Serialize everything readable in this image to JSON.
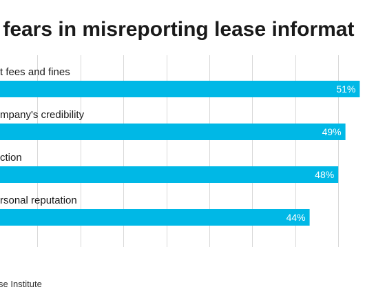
{
  "chart_data": {
    "type": "bar",
    "orientation": "horizontal",
    "title": "t fears in misreporting lease informat",
    "categories": [
      "t fees and fines",
      "mpany's credibility",
      "ction",
      "rsonal reputation"
    ],
    "values": [
      51,
      49,
      48,
      44
    ],
    "value_labels": [
      "51%",
      "49%",
      "48%",
      "44%"
    ],
    "unit": "%",
    "bar_color": "#00b8e6",
    "grid": true,
    "source": "se Institute"
  }
}
